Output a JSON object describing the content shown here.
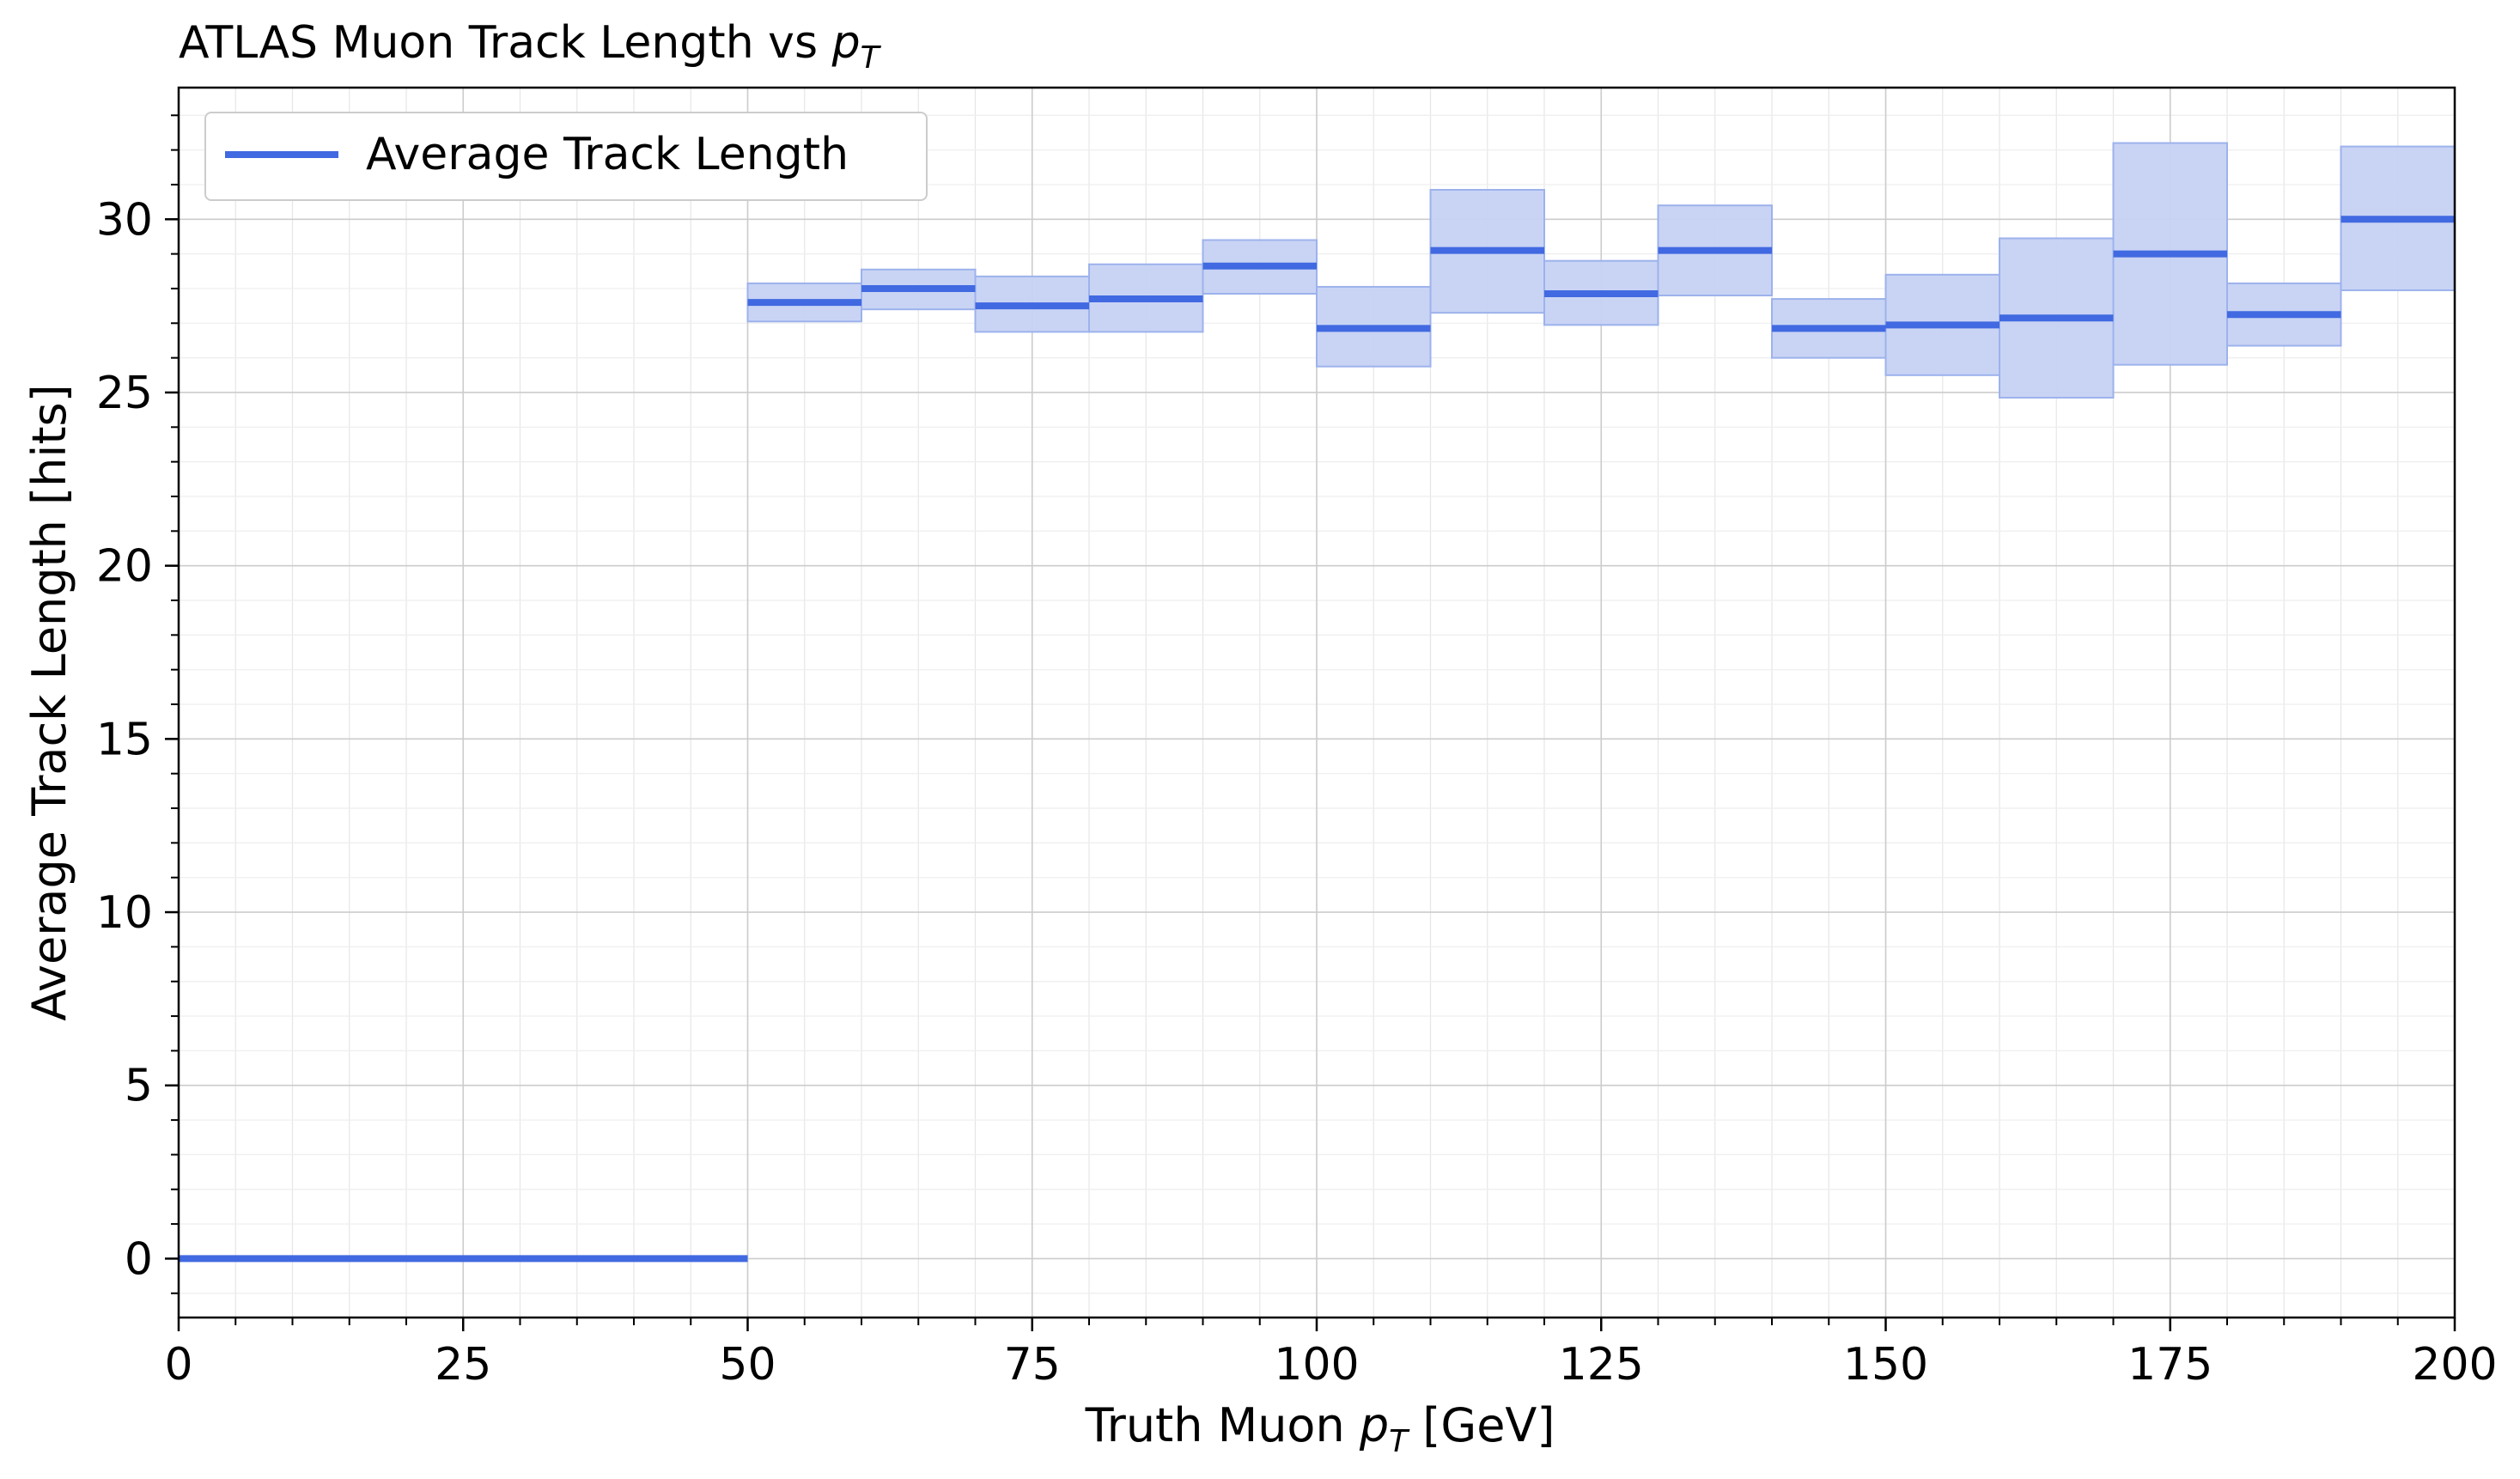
{
  "chart_data": {
    "type": "step",
    "title_main": "ATLAS Muon Track Length vs ",
    "title_math": "p",
    "title_math_sub": "T",
    "xlabel_pre": "Truth Muon ",
    "xlabel_math": "p",
    "xlabel_math_sub": "T",
    "xlabel_post": " [GeV]",
    "ylabel": "Average Track Length [hits]",
    "xlim": [
      0,
      200
    ],
    "ylim": [
      -1.7,
      33.8
    ],
    "xticks": [
      0,
      25,
      50,
      75,
      100,
      125,
      150,
      175,
      200
    ],
    "yticks": [
      0,
      5,
      10,
      15,
      20,
      25,
      30
    ],
    "grid": true,
    "legend_position": "top-left",
    "series": [
      {
        "name": "Average Track Length",
        "color": "#4169e1",
        "band_color": "#c6d2f4",
        "bin_edges": [
          0,
          50,
          60,
          70,
          80,
          90,
          100,
          110,
          120,
          130,
          140,
          150,
          160,
          170,
          180,
          190,
          200
        ],
        "values": [
          0.0,
          27.6,
          28.0,
          27.5,
          27.7,
          28.65,
          26.85,
          29.1,
          27.85,
          29.1,
          26.85,
          26.95,
          27.15,
          29.0,
          27.25,
          30.0
        ],
        "band_low": [
          0.0,
          27.05,
          27.4,
          26.75,
          26.75,
          27.85,
          25.75,
          27.3,
          26.95,
          27.8,
          26.0,
          25.5,
          24.85,
          25.8,
          26.35,
          27.95
        ],
        "band_high": [
          0.0,
          28.15,
          28.55,
          28.35,
          28.7,
          29.4,
          28.05,
          30.85,
          28.8,
          30.4,
          27.7,
          28.4,
          29.45,
          32.2,
          28.15,
          32.1
        ]
      }
    ]
  }
}
